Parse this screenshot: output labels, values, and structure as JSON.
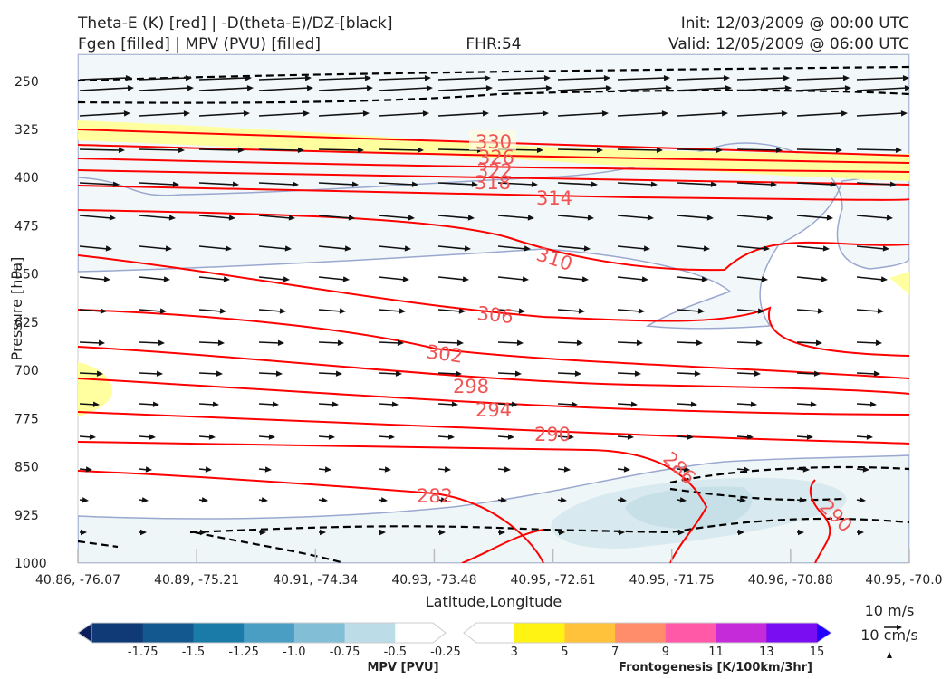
{
  "header": {
    "title_line1": "Theta-E (K) [red] | -D(theta-E)/DZ-[black]",
    "title_line2": "Fgen [filled] | MPV (PVU) [filled]",
    "fhr": "FHR:54",
    "init": "Init: 12/03/2009 @ 00:00 UTC",
    "valid": "Valid: 12/05/2009 @ 06:00 UTC"
  },
  "chart_data": {
    "type": "cross-section",
    "ylabel": "Pressure [hPa]",
    "xlabel": "Latitude,Longitude",
    "y_ticks": [
      "250",
      "325",
      "400",
      "475",
      "550",
      "625",
      "700",
      "775",
      "850",
      "925",
      "1000"
    ],
    "ylim": [
      1000,
      208
    ],
    "x_ticks": [
      "40.86, -76.07",
      "40.89, -75.21",
      "40.91, -74.34",
      "40.93, -73.48",
      "40.95, -72.61",
      "40.95, -71.75",
      "40.96, -70.88",
      "40.95, -70.0"
    ],
    "theta_e_contour_labels": [
      "330",
      "326",
      "322",
      "318",
      "314",
      "310",
      "306",
      "302",
      "298",
      "294",
      "290",
      "286",
      "282",
      "290"
    ],
    "wind_scale": {
      "horizontal": "10 m/s",
      "vertical": "10 cm/s"
    },
    "colorbars": [
      {
        "label": "MPV [PVU]",
        "ticks": [
          "-1.75",
          "-1.5",
          "-1.25",
          "-1.0",
          "-0.75",
          "-0.5",
          "-0.25"
        ],
        "colors": [
          "#0a1f5c",
          "#0f3a75",
          "#13588f",
          "#1a7aa8",
          "#4a9ec3",
          "#82bfd6",
          "#bcdde8",
          "#ffffff"
        ]
      },
      {
        "label": "Frontogenesis [K/100km/3hr]",
        "ticks": [
          "3",
          "5",
          "7",
          "9",
          "11",
          "13",
          "15"
        ],
        "colors": [
          "#ffffff",
          "#fff313",
          "#ffc23a",
          "#ff8c6a",
          "#ff59a7",
          "#c52bd8",
          "#7a0df2",
          "#2400ff"
        ]
      }
    ],
    "colors": {
      "theta_e": "#ff0000",
      "dthetae_dz": "#000000",
      "mpv_outline": "#9aa8d0",
      "fgen_fill": "#ffffa0"
    }
  }
}
